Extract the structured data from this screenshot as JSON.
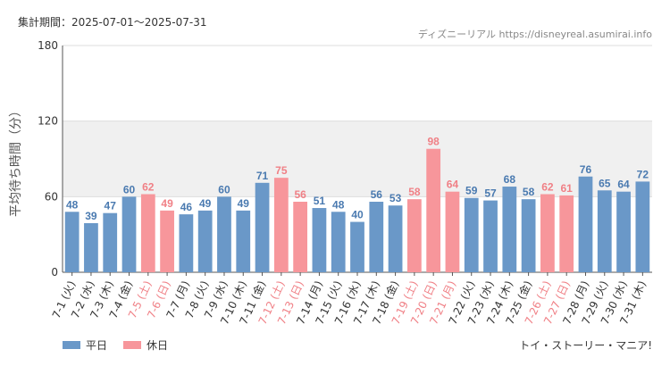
{
  "header": {
    "period_text": "集計期間：2025-07-01～2025-07-31",
    "site_text": "ディズニーリアル https://disneyreal.asumirai.info"
  },
  "footer": {
    "subject_text": "トイ・ストーリー・マニア!"
  },
  "colors": {
    "weekday": "#6a98c8",
    "holiday": "#f7969b",
    "weekday_label": "#4a7ab0",
    "holiday_label": "#f08086",
    "band": "#f0f0f0",
    "grid": "#dddddd"
  },
  "chart_data": {
    "type": "bar",
    "ylabel": "平均待ち時間（分）",
    "ylim": [
      0,
      180
    ],
    "yticks": [
      0,
      60,
      120,
      180
    ],
    "legend": [
      {
        "name": "平日",
        "kind": "weekday"
      },
      {
        "name": "休日",
        "kind": "holiday"
      }
    ],
    "categories": [
      "7-1 (火)",
      "7-2 (水)",
      "7-3 (木)",
      "7-4 (金)",
      "7-5 (土)",
      "7-6 (日)",
      "7-7 (月)",
      "7-8 (火)",
      "7-9 (水)",
      "7-10 (木)",
      "7-11 (金)",
      "7-12 (土)",
      "7-13 (日)",
      "7-14 (月)",
      "7-15 (火)",
      "7-16 (水)",
      "7-17 (木)",
      "7-18 (金)",
      "7-19 (土)",
      "7-20 (日)",
      "7-21 (月)",
      "7-22 (火)",
      "7-23 (水)",
      "7-24 (木)",
      "7-25 (金)",
      "7-26 (土)",
      "7-27 (日)",
      "7-28 (月)",
      "7-29 (火)",
      "7-30 (水)",
      "7-31 (木)"
    ],
    "values": [
      48,
      39,
      47,
      60,
      62,
      49,
      46,
      49,
      60,
      49,
      71,
      75,
      56,
      51,
      48,
      40,
      56,
      53,
      58,
      98,
      64,
      59,
      57,
      68,
      58,
      62,
      61,
      76,
      65,
      64,
      72
    ],
    "kinds": [
      "weekday",
      "weekday",
      "weekday",
      "weekday",
      "holiday",
      "holiday",
      "weekday",
      "weekday",
      "weekday",
      "weekday",
      "weekday",
      "holiday",
      "holiday",
      "weekday",
      "weekday",
      "weekday",
      "weekday",
      "weekday",
      "holiday",
      "holiday",
      "holiday",
      "weekday",
      "weekday",
      "weekday",
      "weekday",
      "holiday",
      "holiday",
      "weekday",
      "weekday",
      "weekday",
      "weekday"
    ]
  }
}
